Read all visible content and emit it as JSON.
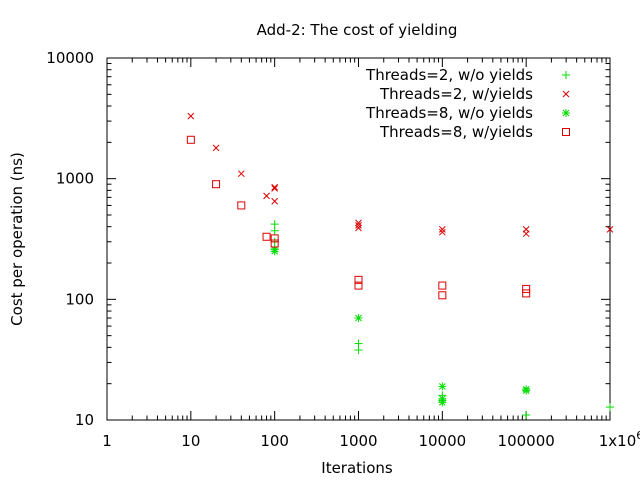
{
  "chart_data": {
    "type": "scatter",
    "title": "Add-2: The cost of yielding",
    "xlabel": "Iterations",
    "ylabel": "Cost per operation (ns)",
    "x_scale": "log",
    "y_scale": "log",
    "xlim": [
      1,
      1000000
    ],
    "ylim": [
      10,
      10000
    ],
    "x_ticks": [
      {
        "value": 1,
        "label": "1"
      },
      {
        "value": 10,
        "label": "10"
      },
      {
        "value": 100,
        "label": "100"
      },
      {
        "value": 1000,
        "label": "1000"
      },
      {
        "value": 10000,
        "label": "10000"
      },
      {
        "value": 100000,
        "label": "100000"
      },
      {
        "value": 1000000,
        "label": "1x10",
        "sup": "6"
      }
    ],
    "y_ticks": [
      {
        "value": 10,
        "label": "10"
      },
      {
        "value": 100,
        "label": "100"
      },
      {
        "value": 1000,
        "label": "1000"
      },
      {
        "value": 10000,
        "label": "10000"
      }
    ],
    "grid": false,
    "legend_position": "top-right",
    "series": [
      {
        "name": "Threads=2, w/o yields",
        "marker": "plus",
        "color": "#00dd00",
        "points": [
          [
            100,
            420
          ],
          [
            100,
            370
          ],
          [
            100,
            300
          ],
          [
            100,
            260
          ],
          [
            1000,
            43
          ],
          [
            1000,
            38
          ],
          [
            10000,
            16
          ],
          [
            10000,
            14.5
          ],
          [
            100000,
            11
          ],
          [
            1000000,
            12.8
          ]
        ]
      },
      {
        "name": "Threads=2, w/yields",
        "marker": "cross",
        "color": "#dd0000",
        "points": [
          [
            10,
            3300
          ],
          [
            20,
            1800
          ],
          [
            40,
            1100
          ],
          [
            80,
            720
          ],
          [
            100,
            850
          ],
          [
            100,
            830
          ],
          [
            100,
            650
          ],
          [
            1000,
            430
          ],
          [
            1000,
            410
          ],
          [
            1000,
            390
          ],
          [
            10000,
            380
          ],
          [
            10000,
            360
          ],
          [
            100000,
            380
          ],
          [
            100000,
            350
          ],
          [
            1000000,
            380
          ]
        ]
      },
      {
        "name": "Threads=8, w/o yields",
        "marker": "star",
        "color": "#00dd00",
        "points": [
          [
            100,
            260
          ],
          [
            100,
            250
          ],
          [
            1000,
            70
          ],
          [
            10000,
            19
          ],
          [
            10000,
            15
          ],
          [
            10000,
            14
          ],
          [
            100000,
            18
          ],
          [
            100000,
            17.5
          ]
        ]
      },
      {
        "name": "Threads=8, w/yields",
        "marker": "square",
        "color": "#dd0000",
        "points": [
          [
            10,
            2100
          ],
          [
            20,
            900
          ],
          [
            40,
            600
          ],
          [
            80,
            330
          ],
          [
            100,
            320
          ],
          [
            100,
            290
          ],
          [
            1000,
            145
          ],
          [
            1000,
            130
          ],
          [
            10000,
            130
          ],
          [
            10000,
            108
          ],
          [
            100000,
            122
          ],
          [
            100000,
            112
          ]
        ]
      }
    ]
  }
}
